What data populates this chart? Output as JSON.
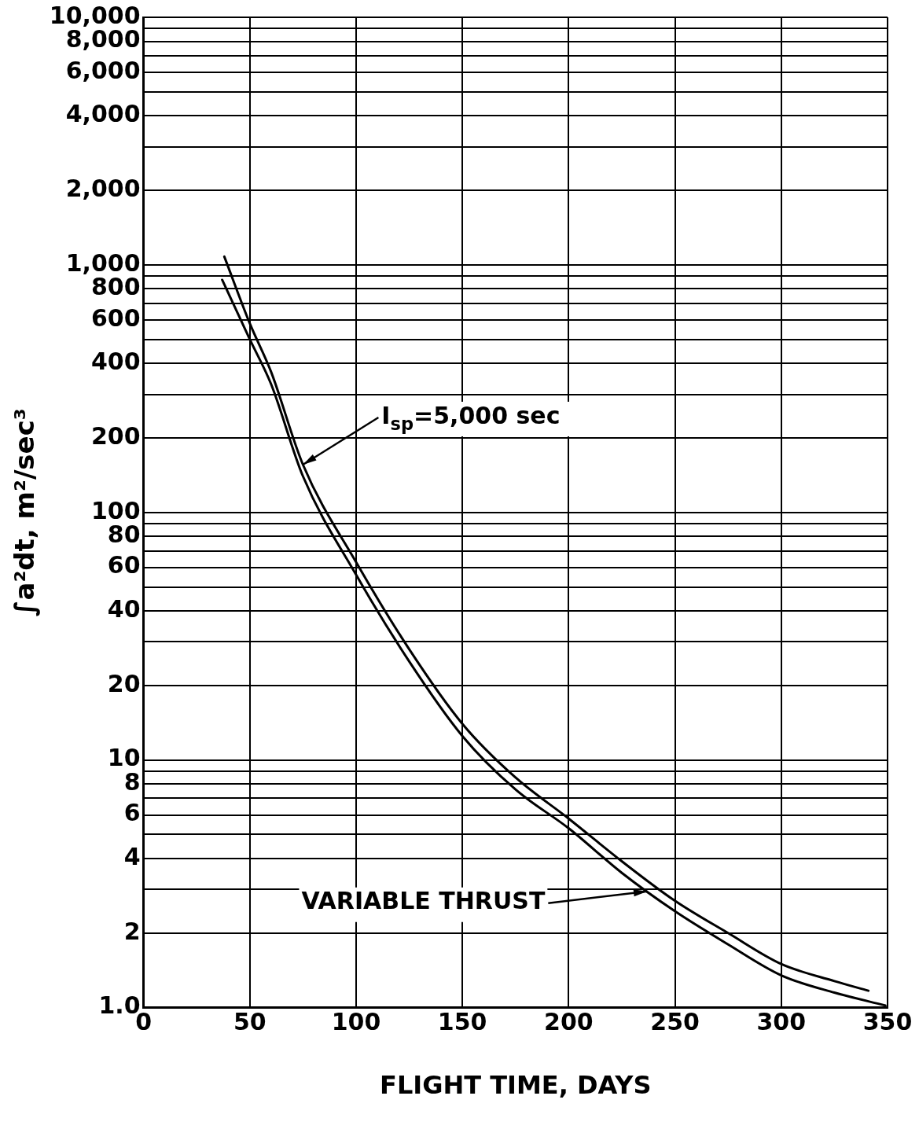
{
  "chart_data": {
    "type": "line",
    "xlabel": "FLIGHT TIME, DAYS",
    "ylabel": "∫a²dt, m²/sec³",
    "log": "y",
    "grid": true,
    "legend": false,
    "marker": "none",
    "line_style": "solid",
    "xlim": [
      0,
      350
    ],
    "xticks": [
      0,
      50,
      100,
      150,
      200,
      250,
      300,
      350
    ],
    "ylim": [
      1,
      10000
    ],
    "yticks": [
      {
        "value": 1,
        "label": "1.0"
      },
      2,
      {
        "value": 3,
        "label": null
      },
      4,
      {
        "value": 5,
        "label": null
      },
      6,
      {
        "value": 7,
        "label": null
      },
      8,
      {
        "value": 9,
        "label": null
      },
      10,
      20,
      {
        "value": 30,
        "label": null
      },
      40,
      {
        "value": 50,
        "label": null
      },
      60,
      {
        "value": 70,
        "label": null
      },
      80,
      {
        "value": 90,
        "label": null
      },
      100,
      200,
      {
        "value": 300,
        "label": null
      },
      400,
      {
        "value": 500,
        "label": null
      },
      600,
      {
        "value": 700,
        "label": null
      },
      800,
      {
        "value": 900,
        "label": null
      },
      {
        "value": 1000,
        "label": "1,000"
      },
      {
        "value": 2000,
        "label": "2,000"
      },
      {
        "value": 3000,
        "label": null
      },
      {
        "value": 4000,
        "label": "4,000"
      },
      {
        "value": 5000,
        "label": null
      },
      {
        "value": 6000,
        "label": "6,000"
      },
      {
        "value": 7000,
        "label": null
      },
      {
        "value": 8000,
        "label": "8,000"
      },
      {
        "value": 9000,
        "label": null
      },
      {
        "value": 10000,
        "label": "10,000"
      }
    ],
    "series": [
      {
        "color": "#000000",
        "x": [
          38,
          50,
          60,
          75,
          100,
          125,
          150,
          175,
          200,
          225,
          250,
          275,
          300,
          325,
          341
        ],
        "values": [
          1080,
          580,
          370,
          156,
          63,
          28,
          14,
          8.5,
          5.8,
          3.9,
          2.7,
          2.0,
          1.5,
          1.28,
          1.17
        ]
      },
      {
        "color": "#000000",
        "x": [
          37,
          50,
          60,
          75,
          100,
          125,
          150,
          175,
          200,
          225,
          250,
          275,
          300,
          325,
          349
        ],
        "values": [
          870,
          500,
          330,
          140,
          56,
          25,
          12.5,
          7.6,
          5.3,
          3.5,
          2.45,
          1.8,
          1.35,
          1.15,
          1.02
        ]
      }
    ],
    "annotations": [
      {
        "text": "I$_{sp}$=5,000 sec",
        "x": 75,
        "y": 156
      },
      {
        "text": "VARIABLE THRUST",
        "x": 237,
        "y": 2.95
      }
    ]
  }
}
